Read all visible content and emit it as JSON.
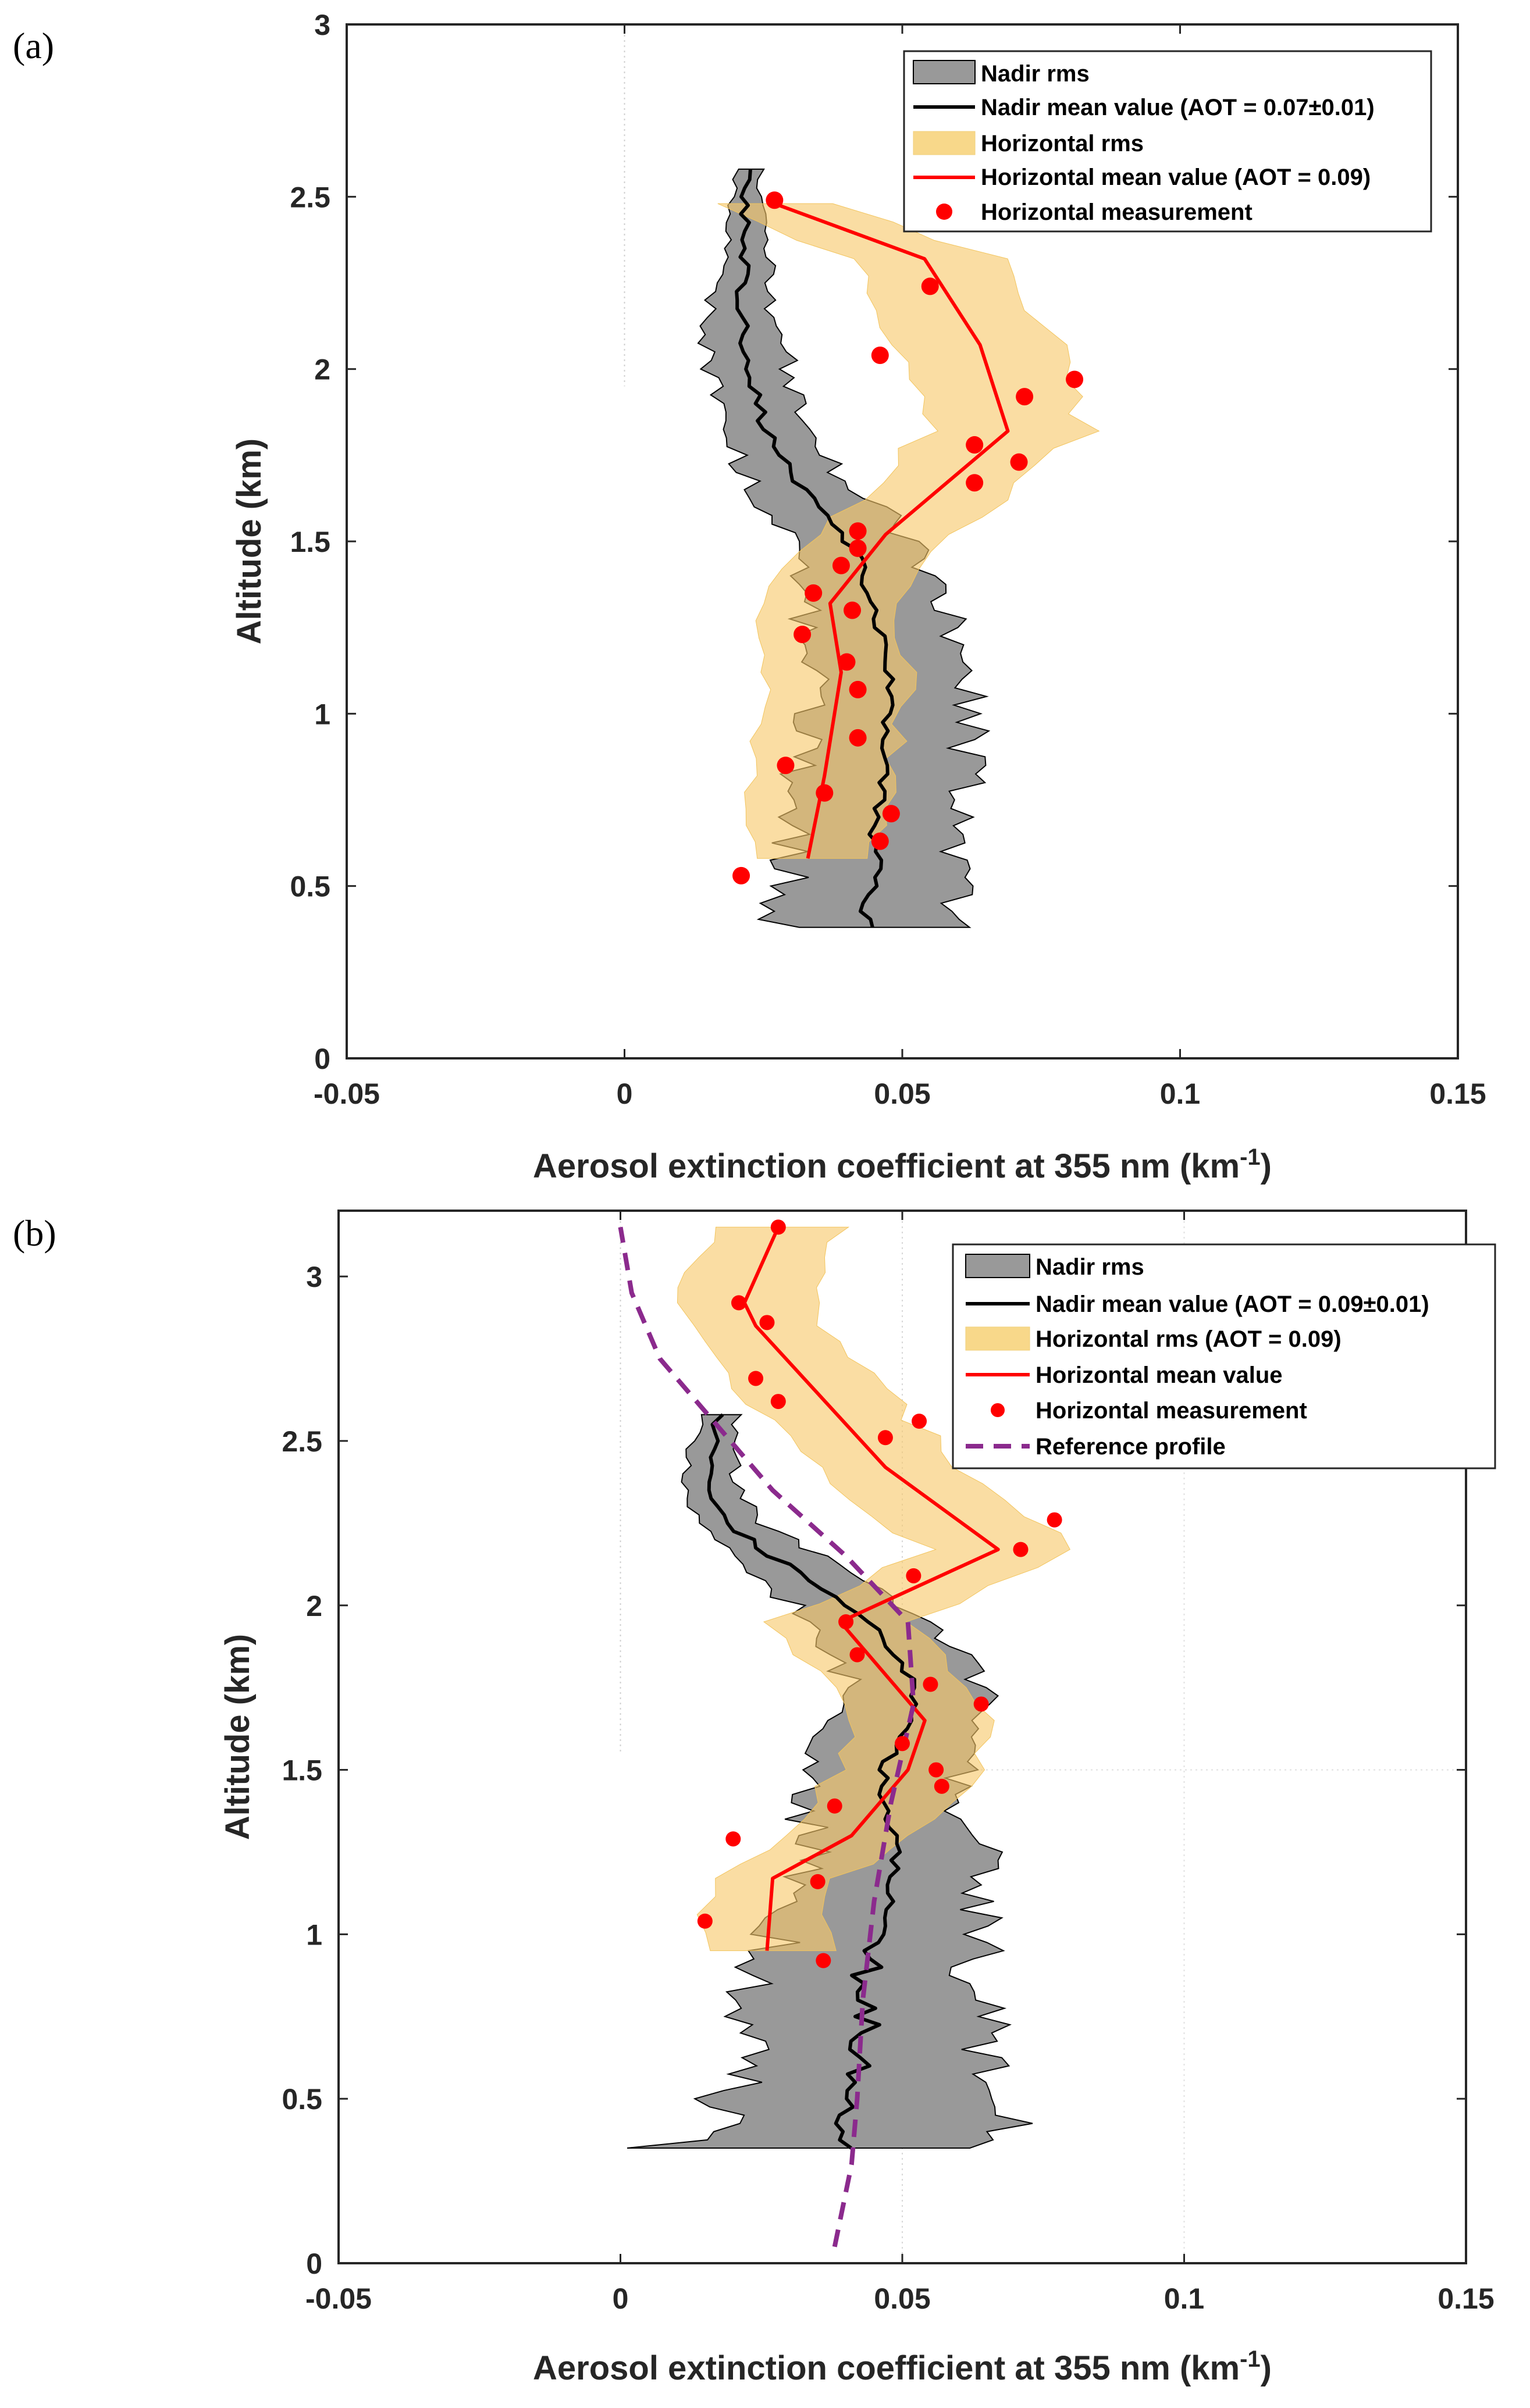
{
  "chart_data": [
    {
      "panel_label": "(a)",
      "type": "line",
      "xlabel": "Aerosol extinction coefficient at 355 nm (km",
      "xlabel_sup": "-1",
      "xlabel_end": ")",
      "ylabel": "Altitude (km)",
      "xlim": [
        -0.05,
        0.15
      ],
      "ylim": [
        0,
        3.0
      ],
      "xticks": [
        -0.05,
        0,
        0.05,
        0.1,
        0.15
      ],
      "xtick_labels": [
        "-0.05",
        "0",
        "0.05",
        "0.1",
        "0.15"
      ],
      "yticks": [
        0,
        0.5,
        1,
        1.5,
        2,
        2.5,
        3
      ],
      "ytick_labels": [
        "0",
        "0.5",
        "1",
        "1.5",
        "2",
        "2.5",
        "3"
      ],
      "legend": {
        "placement": "top-right",
        "entries": [
          {
            "label": "Nadir rms",
            "kind": "gray-patch"
          },
          {
            "label": "Nadir mean value (AOT = 0.07±0.01)",
            "kind": "black-line"
          },
          {
            "label": "Horizontal rms",
            "kind": "orange-patch"
          },
          {
            "label": "Horizontal mean value (AOT = 0.09)",
            "kind": "red-line"
          },
          {
            "label": "Horizontal measurement",
            "kind": "red-dot"
          }
        ]
      },
      "series": [
        {
          "name": "Nadir mean value",
          "altitudes": [
            0.38,
            0.45,
            0.55,
            0.65,
            0.75,
            0.85,
            0.95,
            1.05,
            1.15,
            1.25,
            1.35,
            1.45,
            1.55,
            1.65,
            1.75,
            1.85,
            1.95,
            2.05,
            2.15,
            2.25,
            2.35,
            2.45,
            2.55,
            2.58
          ],
          "values": [
            0.044,
            0.043,
            0.046,
            0.045,
            0.046,
            0.047,
            0.047,
            0.048,
            0.047,
            0.046,
            0.044,
            0.042,
            0.038,
            0.032,
            0.028,
            0.025,
            0.023,
            0.022,
            0.021,
            0.021,
            0.022,
            0.022,
            0.022,
            0.023
          ],
          "rms": [
            0.016,
            0.016,
            0.016,
            0.015,
            0.014,
            0.015,
            0.015,
            0.014,
            0.015,
            0.013,
            0.012,
            0.012,
            0.011,
            0.009,
            0.008,
            0.007,
            0.007,
            0.007,
            0.006,
            0.005,
            0.004,
            0.003,
            0.002,
            0.002
          ]
        },
        {
          "name": "Horizontal mean value",
          "altitudes": [
            0.58,
            0.82,
            1.12,
            1.32,
            1.52,
            1.82,
            2.07,
            2.32,
            2.48
          ],
          "values": [
            0.033,
            0.036,
            0.039,
            0.037,
            0.047,
            0.069,
            0.064,
            0.054,
            0.027
          ],
          "rms": [
            0.011,
            0.012,
            0.013,
            0.012,
            0.013,
            0.014,
            0.014,
            0.013,
            0.011
          ]
        }
      ],
      "measurements": {
        "x": [
          0.027,
          0.055,
          0.046,
          0.081,
          0.072,
          0.063,
          0.071,
          0.063,
          0.042,
          0.042,
          0.039,
          0.034,
          0.041,
          0.032,
          0.04,
          0.042,
          0.042,
          0.029,
          0.036,
          0.048,
          0.046,
          0.021
        ],
        "y": [
          2.49,
          2.24,
          2.04,
          1.97,
          1.92,
          1.78,
          1.73,
          1.67,
          1.53,
          1.48,
          1.43,
          1.35,
          1.3,
          1.23,
          1.15,
          1.07,
          0.93,
          0.85,
          0.77,
          0.71,
          0.63,
          0.53
        ]
      }
    },
    {
      "panel_label": "(b)",
      "type": "line",
      "xlabel": "Aerosol extinction coefficient at 355 nm (km",
      "xlabel_sup": "-1",
      "xlabel_end": ")",
      "ylabel": "Altitude (km)",
      "xlim": [
        -0.05,
        0.15
      ],
      "ylim": [
        0,
        3.2
      ],
      "xticks": [
        -0.05,
        0,
        0.05,
        0.1,
        0.15
      ],
      "xtick_labels": [
        "-0.05",
        "0",
        "0.05",
        "0.1",
        "0.15"
      ],
      "yticks": [
        0,
        0.5,
        1,
        1.5,
        2,
        2.5,
        3
      ],
      "ytick_labels": [
        "0",
        "0.5",
        "1",
        "1.5",
        "2",
        "2.5",
        "3"
      ],
      "legend": {
        "placement": "top-right",
        "entries": [
          {
            "label": "Nadir rms",
            "kind": "gray-patch"
          },
          {
            "label": "Nadir mean value (AOT = 0.09±0.01)",
            "kind": "black-line"
          },
          {
            "label": "Horizontal rms (AOT = 0.09)",
            "kind": "orange-patch"
          },
          {
            "label": "Horizontal mean value",
            "kind": "red-line"
          },
          {
            "label": "Horizontal measurement",
            "kind": "red-dot"
          },
          {
            "label": "Reference profile",
            "kind": "purple-dash"
          }
        ]
      },
      "series": [
        {
          "name": "Nadir mean value",
          "altitudes": [
            0.35,
            0.45,
            0.55,
            0.65,
            0.75,
            0.85,
            0.95,
            1.05,
            1.15,
            1.25,
            1.35,
            1.45,
            1.55,
            1.65,
            1.75,
            1.85,
            1.95,
            2.05,
            2.15,
            2.25,
            2.35,
            2.45,
            2.55,
            2.58
          ],
          "values": [
            0.039,
            0.041,
            0.042,
            0.043,
            0.044,
            0.043,
            0.045,
            0.047,
            0.048,
            0.049,
            0.047,
            0.046,
            0.048,
            0.052,
            0.052,
            0.049,
            0.044,
            0.036,
            0.027,
            0.019,
            0.016,
            0.016,
            0.017,
            0.018
          ],
          "rms": [
            0.03,
            0.025,
            0.022,
            0.021,
            0.02,
            0.019,
            0.019,
            0.018,
            0.017,
            0.016,
            0.014,
            0.013,
            0.013,
            0.013,
            0.012,
            0.011,
            0.01,
            0.009,
            0.008,
            0.006,
            0.005,
            0.004,
            0.003,
            0.003
          ]
        },
        {
          "name": "Horizontal mean value",
          "altitudes": [
            0.95,
            1.17,
            1.3,
            1.5,
            1.65,
            1.85,
            1.95,
            2.17,
            2.42,
            2.85,
            2.92,
            3.15
          ],
          "values": [
            0.026,
            0.027,
            0.041,
            0.051,
            0.054,
            0.044,
            0.039,
            0.067,
            0.047,
            0.024,
            0.022,
            0.028
          ],
          "rms": [
            0.011,
            0.011,
            0.012,
            0.013,
            0.013,
            0.012,
            0.012,
            0.013,
            0.013,
            0.012,
            0.012,
            0.011
          ]
        },
        {
          "name": "Reference profile",
          "altitudes": [
            0.05,
            0.3,
            0.5,
            0.8,
            1.1,
            1.4,
            1.7,
            1.95,
            2.15,
            2.35,
            2.55,
            2.75,
            2.95,
            3.15
          ],
          "values": [
            0.038,
            0.041,
            0.042,
            0.043,
            0.045,
            0.048,
            0.052,
            0.051,
            0.04,
            0.027,
            0.017,
            0.007,
            0.002,
            0.0
          ]
        }
      ],
      "measurements": {
        "x": [
          0.028,
          0.021,
          0.026,
          0.024,
          0.028,
          0.053,
          0.047,
          0.077,
          0.071,
          0.052,
          0.04,
          0.042,
          0.055,
          0.064,
          0.05,
          0.056,
          0.057,
          0.038,
          0.02,
          0.035,
          0.015,
          0.036
        ],
        "y": [
          3.15,
          2.92,
          2.86,
          2.69,
          2.62,
          2.56,
          2.51,
          2.26,
          2.17,
          2.09,
          1.95,
          1.85,
          1.76,
          1.7,
          1.58,
          1.5,
          1.45,
          1.39,
          1.29,
          1.16,
          1.04,
          0.92
        ]
      }
    }
  ]
}
